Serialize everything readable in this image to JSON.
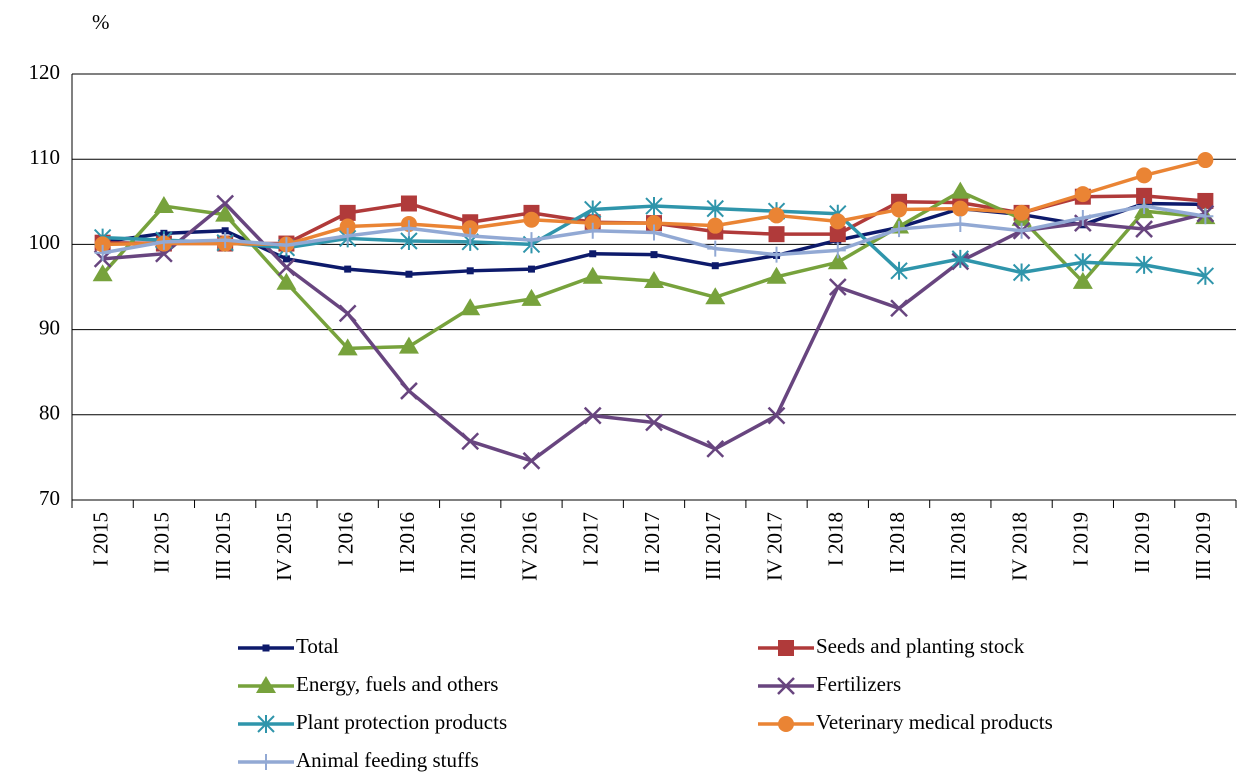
{
  "chart_data": {
    "type": "line",
    "y_label": "%",
    "categories": [
      "I 2015",
      "II 2015",
      "III 2015",
      "IV 2015",
      "I 2016",
      "II 2016",
      "III 2016",
      "IV 2016",
      "I 2017",
      "II 2017",
      "III 2017",
      "IV 2017",
      "I 2018",
      "II 2018",
      "III 2018",
      "IV 2018",
      "I 2019",
      "II 2019",
      "III 2019"
    ],
    "ylim": [
      70,
      120
    ],
    "yticks": [
      70,
      80,
      90,
      100,
      110,
      120
    ],
    "grid": true,
    "series": [
      {
        "name": "Total",
        "color": "#0d1a6b",
        "marker": "square-small",
        "values": [
          100.3,
          101.3,
          101.6,
          98.3,
          97.1,
          96.5,
          96.9,
          97.1,
          98.9,
          98.8,
          97.5,
          98.7,
          100.5,
          102.0,
          104.2,
          103.5,
          102.3,
          104.8,
          104.7
        ]
      },
      {
        "name": "Seeds and planting stock",
        "color": "#b03a3a",
        "marker": "square",
        "values": [
          100.2,
          100.1,
          100.1,
          100.1,
          103.7,
          104.8,
          102.6,
          103.7,
          102.6,
          102.5,
          101.5,
          101.2,
          101.2,
          105.0,
          104.9,
          103.7,
          105.6,
          105.7,
          105.1
        ]
      },
      {
        "name": "Energy, fuels and others",
        "color": "#77a23c",
        "marker": "triangle",
        "values": [
          96.5,
          104.5,
          103.5,
          95.5,
          87.8,
          88.0,
          92.5,
          93.6,
          96.2,
          95.7,
          93.8,
          96.2,
          97.9,
          102.1,
          106.2,
          103.0,
          95.6,
          103.9,
          103.2
        ]
      },
      {
        "name": "Fertilizers",
        "color": "#68457f",
        "marker": "x",
        "values": [
          98.3,
          98.9,
          104.8,
          97.3,
          91.9,
          82.8,
          76.9,
          74.6,
          79.9,
          79.1,
          76.0,
          79.9,
          95.0,
          92.5,
          98.0,
          101.6,
          102.5,
          101.8,
          103.6
        ]
      },
      {
        "name": "Plant protection products",
        "color": "#2f95ab",
        "marker": "asterisk",
        "values": [
          100.8,
          100.5,
          100.2,
          99.6,
          100.7,
          100.4,
          100.3,
          100.0,
          104.1,
          104.5,
          104.2,
          103.9,
          103.6,
          96.9,
          98.3,
          96.7,
          97.9,
          97.6,
          96.3
        ]
      },
      {
        "name": "Veterinary medical products",
        "color": "#ea8434",
        "marker": "circle",
        "values": [
          100.0,
          100.1,
          100.1,
          100.0,
          102.1,
          102.4,
          101.9,
          102.9,
          102.5,
          102.5,
          102.2,
          103.4,
          102.7,
          104.1,
          104.2,
          103.7,
          105.9,
          108.1,
          109.9
        ]
      },
      {
        "name": "Animal feeding stuffs",
        "color": "#92a9d4",
        "marker": "plus",
        "values": [
          99.0,
          100.3,
          100.5,
          99.9,
          101.0,
          101.9,
          101.0,
          100.5,
          101.6,
          101.4,
          99.5,
          98.8,
          99.3,
          101.8,
          102.4,
          101.6,
          103.1,
          104.5,
          103.3
        ]
      }
    ]
  }
}
